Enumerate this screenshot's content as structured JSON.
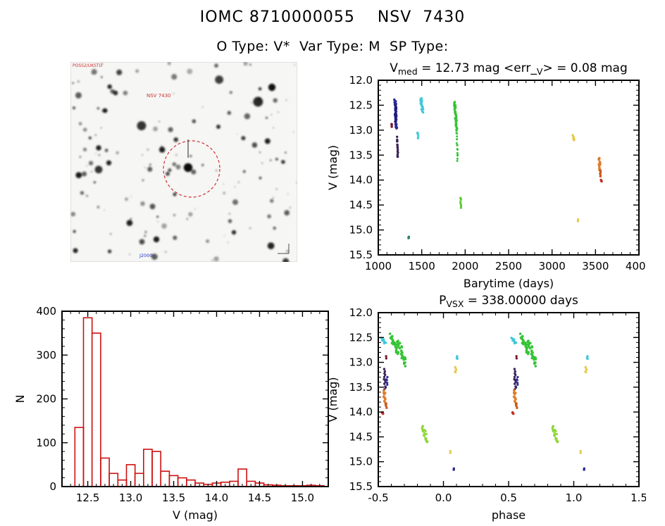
{
  "header": {
    "title": "IOMC 8710000055    NSV  7430",
    "subtitle": "O Type: V*  Var Type: M  SP Type:"
  },
  "finder": {
    "corner_text": "POSS2/UKSTU",
    "target_text": "NSV 7430",
    "bottom_text": "J2000",
    "circle_color": "#d03030"
  },
  "chart_data": [
    {
      "id": "lightcurve",
      "type": "scatter",
      "title_parts": [
        {
          "t": "V"
        },
        {
          "t": "med",
          "sub": true
        },
        {
          "t": " = 12.73 mag <err_"
        },
        {
          "t": "V",
          "sub": true
        },
        {
          "t": "> = 0.08 mag"
        }
      ],
      "xlabel": "Barytime (days)",
      "ylabel": "V (mag)",
      "xlim": [
        1000,
        4000
      ],
      "ylim": [
        12.0,
        15.5
      ],
      "y_down": true,
      "xticks": {
        "values": [
          1000,
          1500,
          2000,
          2500,
          3000,
          3500,
          4000
        ],
        "labels": [
          "1000",
          "1500",
          "2000",
          "2500",
          "3000",
          "3500",
          "4000"
        ]
      },
      "yticks": {
        "values": [
          12.0,
          12.5,
          13.0,
          13.5,
          14.0,
          14.5,
          15.0,
          15.5
        ],
        "labels": [
          "12.0",
          "12.5",
          "13.0",
          "13.5",
          "14.0",
          "14.5",
          "15.0",
          "15.5"
        ]
      },
      "clusters": [
        {
          "x0": 1193,
          "y0": 12.38,
          "x1": 1207,
          "y1": 12.95,
          "n": 38,
          "dx": 10,
          "dy": 0.03,
          "color": "#2b2b99",
          "r": 1.7
        },
        {
          "x0": 1200,
          "y0": 12.5,
          "x1": 1200,
          "y1": 12.8,
          "n": 14,
          "dx": 5,
          "dy": 0.03,
          "color": "#1f1f7a",
          "r": 1.8
        },
        {
          "x0": 1152,
          "y0": 12.88,
          "x1": 1152,
          "y1": 12.94,
          "n": 3,
          "dx": 3,
          "dy": 0.02,
          "color": "#7a1a2e",
          "r": 1.8
        },
        {
          "x0": 1218,
          "y0": 13.15,
          "x1": 1224,
          "y1": 13.55,
          "n": 14,
          "dx": 4,
          "dy": 0.02,
          "color": "#3a2355",
          "r": 1.7
        },
        {
          "x0": 1490,
          "y0": 12.38,
          "x1": 1512,
          "y1": 12.62,
          "n": 20,
          "dx": 9,
          "dy": 0.03,
          "color": "#3fc8d8",
          "r": 1.7
        },
        {
          "x0": 1452,
          "y0": 13.04,
          "x1": 1460,
          "y1": 13.16,
          "n": 7,
          "dx": 4,
          "dy": 0.02,
          "color": "#3fc8d8",
          "r": 1.6
        },
        {
          "x0": 1878,
          "y0": 12.42,
          "x1": 1902,
          "y1": 13.0,
          "n": 42,
          "dx": 7,
          "dy": 0.03,
          "color": "#35c435",
          "r": 1.7
        },
        {
          "x0": 1902,
          "y0": 13.0,
          "x1": 1912,
          "y1": 13.62,
          "n": 16,
          "dx": 4,
          "dy": 0.03,
          "color": "#35c435",
          "r": 1.5
        },
        {
          "x0": 1946,
          "y0": 14.35,
          "x1": 1954,
          "y1": 14.55,
          "n": 8,
          "dx": 4,
          "dy": 0.02,
          "color": "#5ecb3a",
          "r": 1.6
        },
        {
          "x0": 1350,
          "y0": 15.13,
          "x1": 1350,
          "y1": 15.17,
          "n": 2,
          "dx": 2,
          "dy": 0.01,
          "color": "#2f7d5f",
          "r": 1.8
        },
        {
          "x0": 3238,
          "y0": 13.1,
          "x1": 3252,
          "y1": 13.2,
          "n": 7,
          "dx": 6,
          "dy": 0.02,
          "color": "#e6c84a",
          "r": 1.6
        },
        {
          "x0": 3300,
          "y0": 14.79,
          "x1": 3300,
          "y1": 14.83,
          "n": 2,
          "dx": 2,
          "dy": 0.01,
          "color": "#e6c84a",
          "r": 1.6
        },
        {
          "x0": 3542,
          "y0": 13.58,
          "x1": 3552,
          "y1": 13.8,
          "n": 14,
          "dx": 7,
          "dy": 0.03,
          "color": "#e07b28",
          "r": 1.8
        },
        {
          "x0": 3552,
          "y0": 13.82,
          "x1": 3558,
          "y1": 13.92,
          "n": 6,
          "dx": 4,
          "dy": 0.02,
          "color": "#c85a20",
          "r": 1.7
        },
        {
          "x0": 3566,
          "y0": 14.0,
          "x1": 3570,
          "y1": 14.03,
          "n": 3,
          "dx": 3,
          "dy": 0.01,
          "color": "#c03028",
          "r": 1.8
        }
      ]
    },
    {
      "id": "histogram",
      "type": "histogram",
      "title_parts": [],
      "xlabel": "V (mag)",
      "ylabel": "N",
      "xlim": [
        12.2,
        15.3
      ],
      "ylim": [
        0,
        400
      ],
      "y_down": false,
      "color": "#cc1111",
      "xticks": {
        "values": [
          12.5,
          13.0,
          13.5,
          14.0,
          14.5,
          15.0
        ],
        "labels": [
          "12.5",
          "13.0",
          "13.5",
          "14.0",
          "14.5",
          "15.0"
        ]
      },
      "yticks": {
        "values": [
          0,
          100,
          200,
          300,
          400
        ],
        "labels": [
          "0",
          "100",
          "200",
          "300",
          "400"
        ]
      },
      "bin_start": 12.35,
      "bin_width": 0.1,
      "counts": [
        135,
        385,
        350,
        65,
        30,
        15,
        50,
        30,
        85,
        80,
        35,
        25,
        20,
        15,
        8,
        5,
        8,
        10,
        12,
        40,
        12,
        8,
        4,
        3,
        2,
        2,
        2,
        3,
        2
      ]
    },
    {
      "id": "phasecurve",
      "type": "scatter",
      "phase_repeat": true,
      "title_parts": [
        {
          "t": "P"
        },
        {
          "t": "VSX",
          "sub": true
        },
        {
          "t": " = 338.00000 days"
        }
      ],
      "xlabel": "phase",
      "ylabel": "V (mag)",
      "xlim": [
        -0.5,
        1.5
      ],
      "ylim": [
        12.0,
        15.5
      ],
      "y_down": true,
      "xticks": {
        "values": [
          -0.5,
          0.0,
          0.5,
          1.0,
          1.5
        ],
        "labels": [
          "-0.5",
          "0.0",
          "0.5",
          "1.0",
          "1.5"
        ]
      },
      "yticks": {
        "values": [
          12.0,
          12.5,
          13.0,
          13.5,
          14.0,
          14.5,
          15.0,
          15.5
        ],
        "labels": [
          "12.0",
          "12.5",
          "13.0",
          "13.5",
          "14.0",
          "14.5",
          "15.0",
          "15.5"
        ]
      },
      "clusters": [
        {
          "x0": -0.47,
          "y0": 12.5,
          "x1": -0.45,
          "y1": 12.62,
          "n": 8,
          "dx": 0.01,
          "dy": 0.02,
          "color": "#3fc8d8",
          "r": 1.7
        },
        {
          "x0": -0.41,
          "y0": 12.45,
          "x1": -0.35,
          "y1": 12.8,
          "n": 26,
          "dx": 0.012,
          "dy": 0.03,
          "color": "#35c435",
          "r": 1.8
        },
        {
          "x0": -0.35,
          "y0": 12.55,
          "x1": -0.29,
          "y1": 13.05,
          "n": 26,
          "dx": 0.012,
          "dy": 0.03,
          "color": "#35c435",
          "r": 1.8
        },
        {
          "x0": -0.44,
          "y0": 12.88,
          "x1": -0.44,
          "y1": 12.92,
          "n": 2,
          "dx": 0.004,
          "dy": 0.01,
          "color": "#7a1a2e",
          "r": 1.7
        },
        {
          "x0": -0.455,
          "y0": 13.15,
          "x1": -0.448,
          "y1": 13.55,
          "n": 12,
          "dx": 0.006,
          "dy": 0.02,
          "color": "#3a2355",
          "r": 1.7
        },
        {
          "x0": -0.432,
          "y0": 13.3,
          "x1": -0.432,
          "y1": 13.44,
          "n": 5,
          "dx": 0.004,
          "dy": 0.02,
          "color": "#2b2b99",
          "r": 1.6
        },
        {
          "x0": -0.455,
          "y0": 13.58,
          "x1": -0.448,
          "y1": 13.8,
          "n": 10,
          "dx": 0.007,
          "dy": 0.02,
          "color": "#e07b28",
          "r": 1.8
        },
        {
          "x0": -0.44,
          "y0": 13.82,
          "x1": -0.44,
          "y1": 13.92,
          "n": 5,
          "dx": 0.005,
          "dy": 0.02,
          "color": "#c85a20",
          "r": 1.7
        },
        {
          "x0": -0.468,
          "y0": 14.0,
          "x1": -0.465,
          "y1": 14.03,
          "n": 3,
          "dx": 0.004,
          "dy": 0.01,
          "color": "#c03028",
          "r": 1.8
        },
        {
          "x0": -0.16,
          "y0": 14.28,
          "x1": -0.125,
          "y1": 14.6,
          "n": 18,
          "dx": 0.01,
          "dy": 0.03,
          "color": "#8fd63a",
          "r": 1.7
        },
        {
          "x0": 0.09,
          "y0": 13.11,
          "x1": 0.095,
          "y1": 13.19,
          "n": 5,
          "dx": 0.006,
          "dy": 0.02,
          "color": "#e6c84a",
          "r": 1.6
        },
        {
          "x0": 0.1,
          "y0": 12.87,
          "x1": 0.105,
          "y1": 12.93,
          "n": 4,
          "dx": 0.005,
          "dy": 0.02,
          "color": "#3fc8d8",
          "r": 1.6
        },
        {
          "x0": 0.05,
          "y0": 14.79,
          "x1": 0.05,
          "y1": 14.83,
          "n": 2,
          "dx": 0.003,
          "dy": 0.01,
          "color": "#e6c84a",
          "r": 1.6
        },
        {
          "x0": 0.08,
          "y0": 15.13,
          "x1": 0.08,
          "y1": 15.17,
          "n": 2,
          "dx": 0.003,
          "dy": 0.01,
          "color": "#2b2b99",
          "r": 1.7
        }
      ]
    }
  ]
}
